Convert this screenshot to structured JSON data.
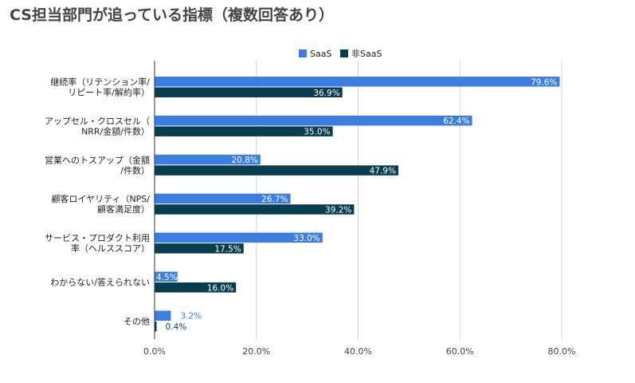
{
  "page": {
    "title": "CS担当部門が追っている指標（複数回答あり）"
  },
  "colors": {
    "saas": "#3b7de0",
    "nonsaas": "#073d4e",
    "grid": "#d3d3d3",
    "axis": "#333333"
  },
  "chart_data": {
    "type": "bar",
    "orientation": "horizontal",
    "title": "CS担当部門が追っている指標（複数回答あり）",
    "categories": [
      [
        "継続率（リテンション率/",
        "リピート率/解約率）"
      ],
      [
        "アップセル・クロスセル（",
        "NRR/金額/件数）"
      ],
      [
        "営業へのトスアップ（金額",
        "/件数）"
      ],
      [
        "顧客ロイヤリティ（NPS/",
        "顧客満足度）"
      ],
      [
        "サービス・プロダクト利用",
        "率（ヘルススコア）"
      ],
      [
        "わからない/答えられない"
      ],
      [
        "その他"
      ]
    ],
    "series": [
      {
        "name": "SaaS",
        "values": [
          79.6,
          62.4,
          20.8,
          26.7,
          33.0,
          4.5,
          3.2
        ],
        "labels": [
          "79.6%",
          "62.4%",
          "20.8%",
          "26.7%",
          "33.0%",
          "4.5%",
          "3.2%"
        ]
      },
      {
        "name": "非SaaS",
        "values": [
          36.9,
          35.0,
          47.9,
          39.2,
          17.5,
          16.0,
          0.4
        ],
        "labels": [
          "36.9%",
          "35.0%",
          "47.9%",
          "39.2%",
          "17.5%",
          "16.0%",
          "0.4%"
        ]
      }
    ],
    "xlim": [
      0,
      80
    ],
    "xticks": [
      0,
      20,
      40,
      60,
      80
    ],
    "xtick_labels": [
      "0.0%",
      "20.0%",
      "40.0%",
      "60.0%",
      "80.0%"
    ],
    "legend": "top-center",
    "grid": true
  }
}
